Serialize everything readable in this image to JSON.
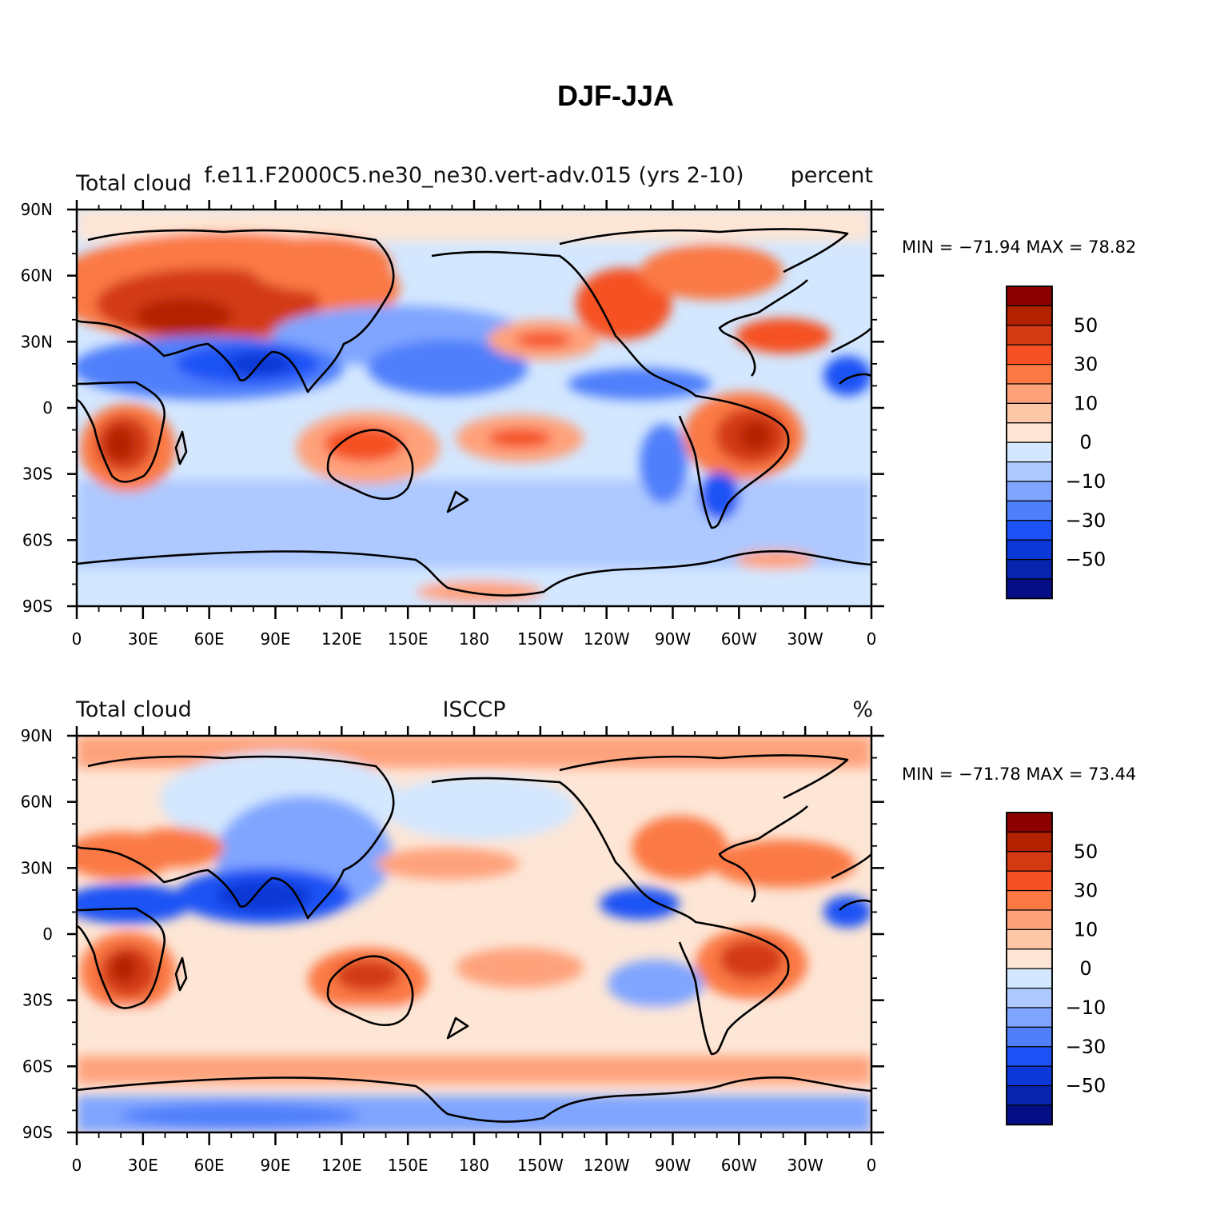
{
  "title": "DJF-JJA",
  "colorbar": {
    "colors": [
      "#8b0000",
      "#b22201",
      "#d33a14",
      "#f55124",
      "#fb7944",
      "#fea27b",
      "#fdc6a6",
      "#fde6d6",
      "#d3e7ff",
      "#adc9ff",
      "#7fa5ff",
      "#4f7ffb",
      "#1c52f5",
      "#0b38d6",
      "#0624ad",
      "#050e84"
    ],
    "labels": [
      "50",
      "30",
      "10",
      "0",
      "−10",
      "−30",
      "−50"
    ]
  },
  "lon_ticks": [
    "0",
    "30E",
    "60E",
    "90E",
    "120E",
    "150E",
    "180",
    "150W",
    "120W",
    "90W",
    "60W",
    "30W",
    "0"
  ],
  "lat_ticks": [
    "90N",
    "60N",
    "30N",
    "0",
    "30S",
    "60S",
    "90S"
  ],
  "panels": [
    {
      "left_label": "Total cloud",
      "center_label": "f.e11.F2000C5.ne30_ne30.vert-adv.015 (yrs 2-10)",
      "right_label": "percent",
      "stats": "MIN = −71.94  MAX =   78.82"
    },
    {
      "left_label": "Total cloud",
      "center_label": "ISCCP",
      "right_label": "%",
      "stats": "MIN = −71.78  MAX =   73.44"
    }
  ]
}
